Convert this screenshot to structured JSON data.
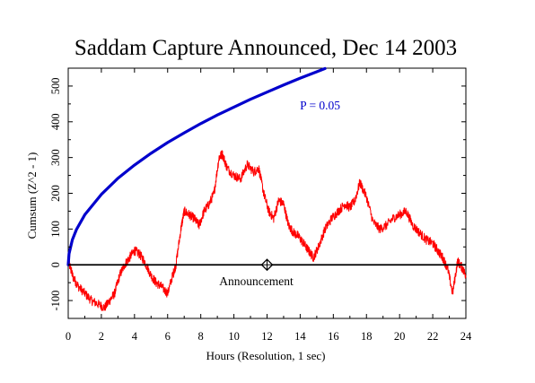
{
  "chart_data": {
    "type": "line",
    "title": "Saddam Capture Announced, Dec 14 2003",
    "xlabel": "Hours (Resolution, 1 sec)",
    "ylabel": "Cumsum (Z^2 - 1)",
    "xlim": [
      0,
      24
    ],
    "ylim": [
      -150,
      550
    ],
    "x_ticks": [
      0,
      2,
      4,
      6,
      8,
      10,
      12,
      14,
      16,
      18,
      20,
      22,
      24
    ],
    "y_ticks": [
      -100,
      0,
      100,
      200,
      300,
      400,
      500
    ],
    "grid": false,
    "colors": {
      "data": "#ff0000",
      "probability": "#0000cc",
      "zero": "#000000"
    },
    "series": [
      {
        "role": "data",
        "x": [
          0,
          0.1,
          0.3,
          0.6,
          1.0,
          1.4,
          1.8,
          2.2,
          2.5,
          2.8,
          3.1,
          3.4,
          3.7,
          4.0,
          4.3,
          4.6,
          5.0,
          5.3,
          5.6,
          6.0,
          6.3,
          6.5,
          6.8,
          7.0,
          7.3,
          7.6,
          7.9,
          8.2,
          8.5,
          8.8,
          9.1,
          9.3,
          9.6,
          10.0,
          10.4,
          10.8,
          11.2,
          11.5,
          11.8,
          12.1,
          12.4,
          12.7,
          13.0,
          13.3,
          13.6,
          13.9,
          14.2,
          14.5,
          14.8,
          15.1,
          15.5,
          15.9,
          16.3,
          16.7,
          17.0,
          17.3,
          17.6,
          18.0,
          18.4,
          18.8,
          19.2,
          19.6,
          20.0,
          20.4,
          20.8,
          21.2,
          21.6,
          22.0,
          22.3,
          22.6,
          22.9,
          23.2,
          23.5,
          23.8,
          24.0
        ],
        "y": [
          20,
          -5,
          -35,
          -60,
          -80,
          -100,
          -110,
          -120,
          -100,
          -80,
          -30,
          0,
          20,
          40,
          30,
          10,
          -30,
          -50,
          -60,
          -80,
          -30,
          0,
          100,
          150,
          140,
          130,
          110,
          150,
          170,
          200,
          300,
          310,
          270,
          250,
          240,
          280,
          260,
          270,
          200,
          150,
          130,
          180,
          170,
          110,
          90,
          80,
          60,
          40,
          20,
          50,
          100,
          130,
          150,
          170,
          160,
          180,
          230,
          190,
          120,
          100,
          110,
          130,
          140,
          150,
          110,
          90,
          70,
          60,
          40,
          20,
          -10,
          -80,
          10,
          -10,
          -30
        ]
      },
      {
        "role": "probability envelope",
        "label": "P = 0.05",
        "formula": "1.645 * sqrt(2*N), N = seconds",
        "x": [
          0,
          0.05,
          0.25,
          0.5,
          1,
          2,
          3,
          4,
          5,
          6,
          7,
          8,
          9,
          10,
          11,
          12,
          13,
          14,
          15,
          15.5
        ],
        "y": [
          0,
          31,
          70,
          99,
          140,
          197,
          242,
          279,
          312,
          342,
          369,
          395,
          419,
          441,
          463,
          483,
          503,
          522,
          540,
          549
        ]
      }
    ],
    "annotations": [
      {
        "text": "Announcement",
        "x": 12,
        "y": 0,
        "marker": "diamond-crosshair"
      },
      {
        "text": "P = 0.05"
      }
    ]
  }
}
